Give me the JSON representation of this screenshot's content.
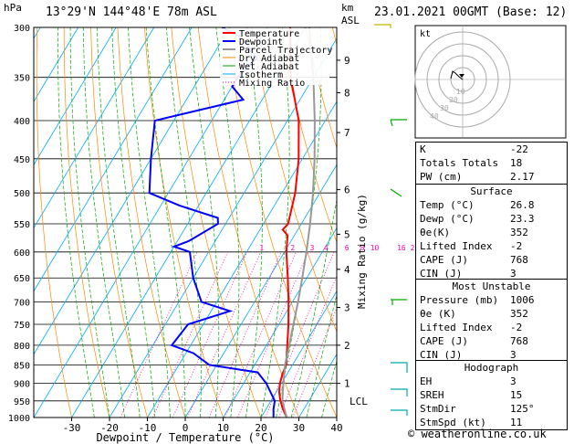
{
  "header": {
    "location": "13°29'N  144°48'E  78m  ASL",
    "datetime": "23.01.2021  00GMT  (Base: 12)"
  },
  "axes": {
    "hpa_unit": "hPa",
    "km_unit": "km",
    "asl_unit": "ASL",
    "xlabel": "Dewpoint / Temperature (°C)",
    "mixing_label": "Mixing Ratio (g/kg)",
    "lcl_label": "LCL"
  },
  "legend": {
    "items": [
      {
        "label": "Temperature",
        "color": "#ff0000"
      },
      {
        "label": "Dewpoint",
        "color": "#0000ff"
      },
      {
        "label": "Parcel Trajectory",
        "color": "#999999"
      },
      {
        "label": "Dry Adiabat",
        "color": "#ff8800"
      },
      {
        "label": "Wet Adiabat",
        "color": "#00aa00"
      },
      {
        "label": "Isotherm",
        "color": "#00aaff"
      },
      {
        "label": "Mixing Ratio",
        "color": "#ff00aa"
      }
    ]
  },
  "chart_data": {
    "type": "skew-t log-p",
    "title": "13°29'N 144°48'E 78m ASL — 23.01.2021 00GMT (Base: 12)",
    "xlabel": "Dewpoint / Temperature (°C)",
    "ylabel": "hPa",
    "pressure_levels": [
      300,
      350,
      400,
      450,
      500,
      550,
      600,
      650,
      700,
      750,
      800,
      850,
      900,
      950,
      1000
    ],
    "x_ticks": [
      -30,
      -20,
      -10,
      0,
      10,
      20,
      30,
      40
    ],
    "xlim": [
      -40,
      40
    ],
    "ylim": [
      1000,
      300
    ],
    "km_ticks": [
      {
        "p": 332,
        "label": "9"
      },
      {
        "p": 367,
        "label": "8"
      },
      {
        "p": 415,
        "label": "7"
      },
      {
        "p": 495,
        "label": "6"
      },
      {
        "p": 568,
        "label": "5"
      },
      {
        "p": 633,
        "label": "4"
      },
      {
        "p": 712,
        "label": "3"
      },
      {
        "p": 800,
        "label": "2"
      },
      {
        "p": 900,
        "label": "1"
      }
    ],
    "mixing_ratio_values": [
      "1",
      "2",
      "3",
      "4",
      "6",
      "8",
      "10",
      "16",
      "20",
      "25"
    ],
    "mixing_ratio_labels": [
      {
        "label": "1",
        "x": -6.0
      },
      {
        "label": "2",
        "x": 2.2
      },
      {
        "label": "3",
        "x": 7.3
      },
      {
        "label": "4",
        "x": 11.0
      },
      {
        "label": "6",
        "x": 16.5
      },
      {
        "label": "8",
        "x": 20.6
      },
      {
        "label": "10",
        "x": 23.8
      },
      {
        "label": "16",
        "x": 30.9
      },
      {
        "label": "20",
        "x": 34.4
      },
      {
        "label": "25",
        "x": 38.0
      }
    ],
    "series": [
      {
        "name": "Temperature",
        "color": "#ff0000",
        "points": [
          [
            1000,
            26.8
          ],
          [
            975,
            24.5
          ],
          [
            950,
            22.5
          ],
          [
            925,
            20.8
          ],
          [
            900,
            19.6
          ],
          [
            875,
            18.8
          ],
          [
            850,
            18.3
          ],
          [
            800,
            15.5
          ],
          [
            750,
            12.5
          ],
          [
            700,
            9.0
          ],
          [
            650,
            5.0
          ],
          [
            600,
            0.5
          ],
          [
            570,
            -1.8
          ],
          [
            560,
            -4.0
          ],
          [
            550,
            -3.5
          ],
          [
            500,
            -6.5
          ],
          [
            450,
            -11.0
          ],
          [
            400,
            -17.0
          ],
          [
            350,
            -26.0
          ],
          [
            300,
            -34.0
          ]
        ]
      },
      {
        "name": "Dewpoint",
        "color": "#0000ff",
        "points": [
          [
            1000,
            23.3
          ],
          [
            975,
            22.0
          ],
          [
            950,
            21.0
          ],
          [
            900,
            16.0
          ],
          [
            870,
            12.0
          ],
          [
            850,
            -2.0
          ],
          [
            820,
            -8.0
          ],
          [
            800,
            -15.0
          ],
          [
            750,
            -14.0
          ],
          [
            720,
            -5.0
          ],
          [
            700,
            -14.0
          ],
          [
            650,
            -20.0
          ],
          [
            600,
            -25.0
          ],
          [
            590,
            -30.0
          ],
          [
            580,
            -27.0
          ],
          [
            550,
            -22.0
          ],
          [
            540,
            -23.0
          ],
          [
            520,
            -35.0
          ],
          [
            500,
            -45.0
          ],
          [
            450,
            -50.0
          ],
          [
            400,
            -55.0
          ],
          [
            375,
            -35.0
          ],
          [
            360,
            -40.0
          ],
          [
            350,
            -40.0
          ],
          [
            330,
            -38.0
          ],
          [
            310,
            -45.0
          ],
          [
            300,
            -52.0
          ]
        ]
      },
      {
        "name": "Parcel Trajectory",
        "color": "#999999",
        "points": [
          [
            1000,
            26.8
          ],
          [
            950,
            23.0
          ],
          [
            900,
            20.5
          ],
          [
            850,
            18.0
          ],
          [
            800,
            16.0
          ],
          [
            750,
            13.8
          ],
          [
            700,
            11.5
          ],
          [
            650,
            8.8
          ],
          [
            600,
            5.8
          ],
          [
            550,
            2.3
          ],
          [
            500,
            -1.8
          ],
          [
            450,
            -6.8
          ],
          [
            400,
            -12.8
          ],
          [
            350,
            -20.0
          ],
          [
            300,
            -29.0
          ]
        ]
      }
    ]
  },
  "hodograph": {
    "label": "kt",
    "rings": [
      "10",
      "20",
      "30",
      "40"
    ]
  },
  "indices": {
    "rows": [
      {
        "label": "K",
        "value": "-22"
      },
      {
        "label": "Totals Totals",
        "value": "18"
      },
      {
        "label": "PW (cm)",
        "value": "2.17"
      }
    ]
  },
  "surface": {
    "header": "Surface",
    "rows": [
      {
        "label": "Temp (°C)",
        "value": "26.8"
      },
      {
        "label": "Dewp (°C)",
        "value": "23.3"
      },
      {
        "label": "θe(K)",
        "value": "352"
      },
      {
        "label": "Lifted Index",
        "value": "-2"
      },
      {
        "label": "CAPE (J)",
        "value": "768"
      },
      {
        "label": "CIN (J)",
        "value": "3"
      }
    ]
  },
  "most_unstable": {
    "header": "Most Unstable",
    "rows": [
      {
        "label": "Pressure (mb)",
        "value": "1006"
      },
      {
        "label": "θe (K)",
        "value": "352"
      },
      {
        "label": "Lifted Index",
        "value": "-2"
      },
      {
        "label": "CAPE (J)",
        "value": "768"
      },
      {
        "label": "CIN (J)",
        "value": "3"
      }
    ]
  },
  "hodograph_table": {
    "header": "Hodograph",
    "rows": [
      {
        "label": "EH",
        "value": "3"
      },
      {
        "label": "SREH",
        "value": "15"
      },
      {
        "label": "StmDir",
        "value": "125°"
      },
      {
        "label": "StmSpd (kt)",
        "value": "11"
      }
    ]
  },
  "footer": {
    "copyright": "© weatheronline.co.uk"
  }
}
